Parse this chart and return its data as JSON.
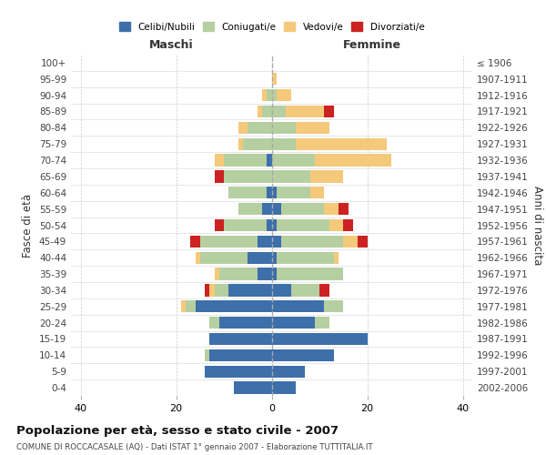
{
  "age_groups": [
    "0-4",
    "5-9",
    "10-14",
    "15-19",
    "20-24",
    "25-29",
    "30-34",
    "35-39",
    "40-44",
    "45-49",
    "50-54",
    "55-59",
    "60-64",
    "65-69",
    "70-74",
    "75-79",
    "80-84",
    "85-89",
    "90-94",
    "95-99",
    "100+"
  ],
  "birth_years": [
    "2002-2006",
    "1997-2001",
    "1992-1996",
    "1987-1991",
    "1982-1986",
    "1977-1981",
    "1972-1976",
    "1967-1971",
    "1962-1966",
    "1957-1961",
    "1952-1956",
    "1947-1951",
    "1942-1946",
    "1937-1941",
    "1932-1936",
    "1927-1931",
    "1922-1926",
    "1917-1921",
    "1912-1916",
    "1907-1911",
    "≤ 1906"
  ],
  "maschi": {
    "celibi": [
      8,
      14,
      13,
      13,
      11,
      16,
      9,
      3,
      5,
      3,
      1,
      2,
      1,
      0,
      1,
      0,
      0,
      0,
      0,
      0,
      0
    ],
    "coniugati": [
      0,
      0,
      1,
      0,
      2,
      2,
      3,
      8,
      10,
      12,
      9,
      5,
      8,
      10,
      9,
      6,
      5,
      2,
      1,
      0,
      0
    ],
    "vedovi": [
      0,
      0,
      0,
      0,
      0,
      1,
      1,
      1,
      1,
      0,
      0,
      0,
      0,
      0,
      2,
      1,
      2,
      1,
      1,
      0,
      0
    ],
    "divorziati": [
      0,
      0,
      0,
      0,
      0,
      0,
      1,
      0,
      0,
      2,
      2,
      0,
      0,
      2,
      0,
      0,
      0,
      0,
      0,
      0,
      0
    ]
  },
  "femmine": {
    "nubili": [
      5,
      7,
      13,
      20,
      9,
      11,
      4,
      1,
      1,
      2,
      1,
      2,
      1,
      0,
      0,
      0,
      0,
      0,
      0,
      0,
      0
    ],
    "coniugate": [
      0,
      0,
      0,
      0,
      3,
      4,
      6,
      14,
      12,
      13,
      11,
      9,
      7,
      8,
      9,
      5,
      5,
      3,
      1,
      0,
      0
    ],
    "vedove": [
      0,
      0,
      0,
      0,
      0,
      0,
      0,
      0,
      1,
      3,
      3,
      3,
      3,
      7,
      16,
      19,
      7,
      8,
      3,
      1,
      0
    ],
    "divorziate": [
      0,
      0,
      0,
      0,
      0,
      0,
      2,
      0,
      0,
      2,
      2,
      2,
      0,
      0,
      0,
      0,
      0,
      2,
      0,
      0,
      0
    ]
  },
  "colors": {
    "celibi": "#3d6faa",
    "coniugati": "#b5cfa0",
    "vedovi": "#f5c97a",
    "divorziati": "#cc2222"
  },
  "xlim": 42,
  "title": "Popolazione per età, sesso e stato civile - 2007",
  "subtitle": "COMUNE DI ROCCACASALE (AQ) - Dati ISTAT 1° gennaio 2007 - Elaborazione TUTTITALIA.IT",
  "xlabel_left": "Maschi",
  "xlabel_right": "Femmine",
  "ylabel_left": "Fasce di età",
  "ylabel_right": "Anni di nascita"
}
